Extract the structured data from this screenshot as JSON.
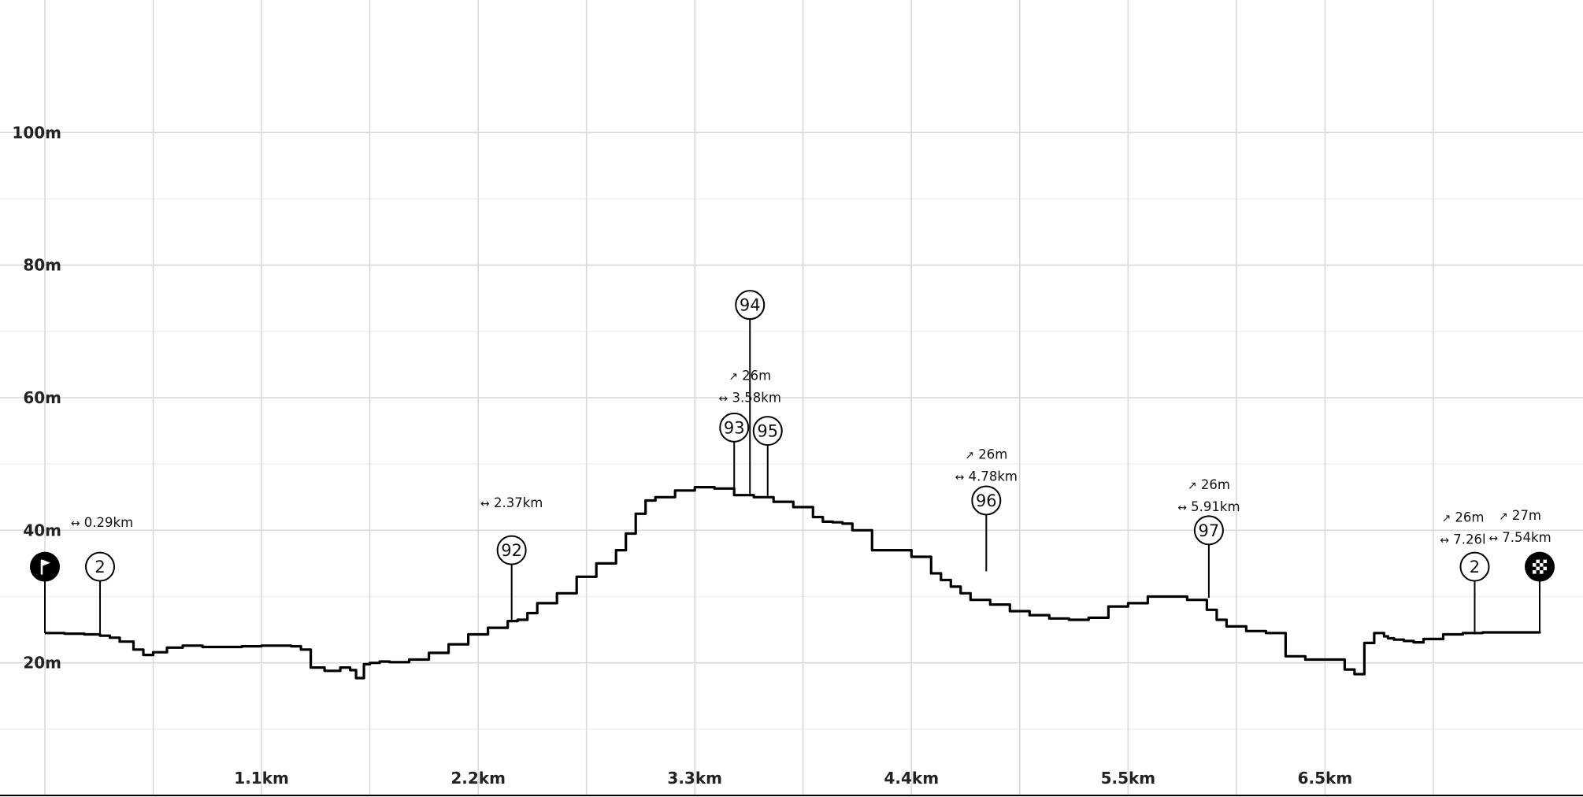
{
  "chart_data": {
    "type": "line",
    "title": "",
    "xlabel": "",
    "ylabel": "",
    "x_unit": "km",
    "y_unit": "m",
    "xlim": [
      0,
      7.59
    ],
    "ylim": [
      0,
      120
    ],
    "x_ticks": [
      {
        "value": 1.1,
        "label": "1.1km"
      },
      {
        "value": 2.2,
        "label": "2.2km"
      },
      {
        "value": 3.3,
        "label": "3.3km"
      },
      {
        "value": 4.4,
        "label": "4.4km"
      },
      {
        "value": 5.5,
        "label": "5.5km"
      },
      {
        "value": 6.5,
        "label": "6.5km"
      }
    ],
    "x_minor_ticks": [
      0,
      0.55,
      1.65,
      2.75,
      3.85,
      4.95,
      6.05,
      7.05
    ],
    "y_ticks": [
      {
        "value": 20,
        "label": "20m"
      },
      {
        "value": 40,
        "label": "40m"
      },
      {
        "value": 60,
        "label": "60m"
      },
      {
        "value": 80,
        "label": "80m"
      },
      {
        "value": 100,
        "label": "100m"
      }
    ],
    "y_minor_ticks": [
      10,
      30,
      50,
      70,
      90
    ],
    "grid": true,
    "series": [
      {
        "color": "#000000",
        "x": [
          0.0,
          0.1,
          0.2,
          0.28,
          0.33,
          0.38,
          0.45,
          0.5,
          0.55,
          0.62,
          0.7,
          0.8,
          0.9,
          1.0,
          1.1,
          1.2,
          1.25,
          1.3,
          1.35,
          1.42,
          1.5,
          1.55,
          1.58,
          1.62,
          1.65,
          1.7,
          1.75,
          1.85,
          1.95,
          2.05,
          2.15,
          2.25,
          2.35,
          2.4,
          2.45,
          2.5,
          2.6,
          2.7,
          2.8,
          2.9,
          2.95,
          3.0,
          3.05,
          3.1,
          3.2,
          3.3,
          3.4,
          3.5,
          3.6,
          3.7,
          3.8,
          3.9,
          3.95,
          4.0,
          4.05,
          4.1,
          4.2,
          4.3,
          4.4,
          4.5,
          4.55,
          4.6,
          4.65,
          4.7,
          4.8,
          4.9,
          5.0,
          5.1,
          5.2,
          5.3,
          5.4,
          5.5,
          5.6,
          5.7,
          5.8,
          5.9,
          5.95,
          6.0,
          6.1,
          6.2,
          6.3,
          6.4,
          6.5,
          6.6,
          6.65,
          6.7,
          6.75,
          6.8,
          6.82,
          6.85,
          6.9,
          6.95,
          7.0,
          7.1,
          7.2,
          7.3,
          7.4,
          7.59
        ],
        "y": [
          24.5,
          24.4,
          24.3,
          24.1,
          23.8,
          23.2,
          22.0,
          21.2,
          21.6,
          22.3,
          22.6,
          22.4,
          22.4,
          22.5,
          22.6,
          22.6,
          22.5,
          22.0,
          19.3,
          18.8,
          19.3,
          18.9,
          17.7,
          19.8,
          20.0,
          20.2,
          20.1,
          20.5,
          21.5,
          22.8,
          24.3,
          25.3,
          26.3,
          26.5,
          27.5,
          29.0,
          30.5,
          33.0,
          35.0,
          37.0,
          39.5,
          42.5,
          44.5,
          45.0,
          46.0,
          46.5,
          46.3,
          45.3,
          45.0,
          44.3,
          43.5,
          42.0,
          41.3,
          41.2,
          41.0,
          40.0,
          37.0,
          37.0,
          36.0,
          33.5,
          32.5,
          31.5,
          30.5,
          29.5,
          28.8,
          27.8,
          27.2,
          26.7,
          26.5,
          26.8,
          28.5,
          29.0,
          30.0,
          30.0,
          29.5,
          28.0,
          26.5,
          25.5,
          24.8,
          24.5,
          21.0,
          20.5,
          20.5,
          19.0,
          18.3,
          23.0,
          24.5,
          24.0,
          23.7,
          23.5,
          23.3,
          23.1,
          23.6,
          24.3,
          24.5,
          24.6,
          24.6,
          24.7
        ]
      }
    ],
    "waypoints": [
      {
        "label": "",
        "icon": "start-flag-icon",
        "x": 0.0,
        "y": 24.5,
        "marker_y": 34.5,
        "filled": true
      },
      {
        "label": "2",
        "x": 0.28,
        "y": 24.1,
        "marker_y": 34.5,
        "filled": false
      },
      {
        "label": "92",
        "x": 2.37,
        "y": 26.5,
        "marker_y": 37.0,
        "filled": false
      },
      {
        "label": "93",
        "x": 3.5,
        "y": 46.3,
        "marker_y": 55.5,
        "filled": false
      },
      {
        "label": "94",
        "x": 3.58,
        "y": 45.3,
        "marker_y": 74.0,
        "filled": false
      },
      {
        "label": "95",
        "x": 3.67,
        "y": 45.2,
        "marker_y": 55.0,
        "filled": false
      },
      {
        "label": "96",
        "x": 4.78,
        "y": 33.8,
        "marker_y": 44.5,
        "filled": false
      },
      {
        "label": "97",
        "x": 5.91,
        "y": 29.8,
        "marker_y": 40.0,
        "filled": false
      },
      {
        "label": "2",
        "x": 7.26,
        "y": 24.3,
        "marker_y": 34.5,
        "filled": false
      },
      {
        "label": "",
        "icon": "finish-flag-icon",
        "x": 7.59,
        "y": 24.7,
        "marker_y": 34.5,
        "filled": true
      }
    ],
    "annotations": [
      {
        "x": 0.29,
        "y": 40.5,
        "lines": [
          {
            "icon": "distance-icon",
            "text": "0.29km"
          }
        ]
      },
      {
        "x": 2.37,
        "y": 43.5,
        "lines": [
          {
            "icon": "distance-icon",
            "text": "2.37km"
          }
        ]
      },
      {
        "x": 3.58,
        "y": 62.7,
        "lines": [
          {
            "icon": "ascent-icon",
            "text": "26m"
          },
          {
            "icon": "distance-icon",
            "text": "3.58km"
          }
        ]
      },
      {
        "x": 4.78,
        "y": 50.8,
        "lines": [
          {
            "icon": "ascent-icon",
            "text": "26m"
          },
          {
            "icon": "distance-icon",
            "text": "4.78km"
          }
        ]
      },
      {
        "x": 5.91,
        "y": 46.2,
        "lines": [
          {
            "icon": "ascent-icon",
            "text": "26m"
          },
          {
            "icon": "distance-icon",
            "text": "5.91km"
          }
        ]
      },
      {
        "x": 7.2,
        "y": 41.3,
        "lines": [
          {
            "icon": "ascent-icon",
            "text": "26m"
          },
          {
            "icon": "distance-icon",
            "text": "7.26l"
          }
        ]
      },
      {
        "x": 7.49,
        "y": 41.6,
        "lines": [
          {
            "icon": "ascent-icon",
            "text": "27m"
          },
          {
            "icon": "distance-icon",
            "text": "7.54km"
          }
        ]
      }
    ]
  }
}
